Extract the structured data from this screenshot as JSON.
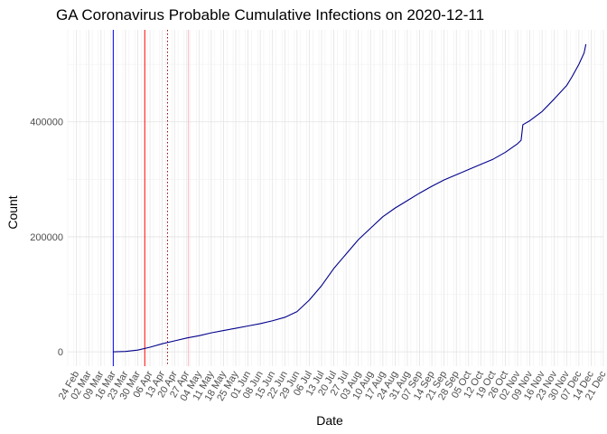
{
  "chart_data": {
    "type": "line",
    "title": "GA Coronavirus Probable Cumulative Infections on 2020-12-11",
    "xlabel": "Date",
    "ylabel": "Count",
    "x_type": "date",
    "xlim": [
      "2020-02-19",
      "2020-12-21"
    ],
    "ylim": [
      -25000,
      560000
    ],
    "grid": true,
    "legend": "none",
    "x_ticks": [
      {
        "date": "2020-02-24",
        "label": "24 Feb"
      },
      {
        "date": "2020-03-02",
        "label": "02 Mar"
      },
      {
        "date": "2020-03-09",
        "label": "09 Mar"
      },
      {
        "date": "2020-03-16",
        "label": "16 Mar"
      },
      {
        "date": "2020-03-23",
        "label": "23 Mar"
      },
      {
        "date": "2020-03-30",
        "label": "30 Mar"
      },
      {
        "date": "2020-04-06",
        "label": "06 Apr"
      },
      {
        "date": "2020-04-13",
        "label": "13 Apr"
      },
      {
        "date": "2020-04-20",
        "label": "20 Apr"
      },
      {
        "date": "2020-04-27",
        "label": "27 Apr"
      },
      {
        "date": "2020-05-04",
        "label": "04 May"
      },
      {
        "date": "2020-05-11",
        "label": "11 May"
      },
      {
        "date": "2020-05-18",
        "label": "18 May"
      },
      {
        "date": "2020-05-25",
        "label": "25 May"
      },
      {
        "date": "2020-06-01",
        "label": "01 Jun"
      },
      {
        "date": "2020-06-08",
        "label": "08 Jun"
      },
      {
        "date": "2020-06-15",
        "label": "15 Jun"
      },
      {
        "date": "2020-06-22",
        "label": "22 Jun"
      },
      {
        "date": "2020-06-29",
        "label": "29 Jun"
      },
      {
        "date": "2020-07-06",
        "label": "06 Jul"
      },
      {
        "date": "2020-07-13",
        "label": "13 Jul"
      },
      {
        "date": "2020-07-20",
        "label": "20 Jul"
      },
      {
        "date": "2020-07-27",
        "label": "27 Jul"
      },
      {
        "date": "2020-08-03",
        "label": "03 Aug"
      },
      {
        "date": "2020-08-10",
        "label": "10 Aug"
      },
      {
        "date": "2020-08-17",
        "label": "17 Aug"
      },
      {
        "date": "2020-08-24",
        "label": "24 Aug"
      },
      {
        "date": "2020-08-31",
        "label": "31 Aug"
      },
      {
        "date": "2020-09-07",
        "label": "07 Sep"
      },
      {
        "date": "2020-09-14",
        "label": "14 Sep"
      },
      {
        "date": "2020-09-21",
        "label": "21 Sep"
      },
      {
        "date": "2020-09-28",
        "label": "28 Sep"
      },
      {
        "date": "2020-10-05",
        "label": "05 Oct"
      },
      {
        "date": "2020-10-12",
        "label": "12 Oct"
      },
      {
        "date": "2020-10-19",
        "label": "19 Oct"
      },
      {
        "date": "2020-10-26",
        "label": "26 Oct"
      },
      {
        "date": "2020-11-02",
        "label": "02 Nov"
      },
      {
        "date": "2020-11-09",
        "label": "09 Nov"
      },
      {
        "date": "2020-11-16",
        "label": "16 Nov"
      },
      {
        "date": "2020-11-23",
        "label": "23 Nov"
      },
      {
        "date": "2020-11-30",
        "label": "30 Nov"
      },
      {
        "date": "2020-12-07",
        "label": "07 Dec"
      },
      {
        "date": "2020-12-14",
        "label": "14 Dec"
      },
      {
        "date": "2020-12-21",
        "label": "21 Dec"
      }
    ],
    "y_ticks": [
      {
        "value": 0,
        "label": "0"
      },
      {
        "value": 200000,
        "label": "200000"
      },
      {
        "value": 400000,
        "label": "400000"
      }
    ],
    "vlines": [
      {
        "date": "2020-03-16",
        "color": "#0000ff",
        "style": "solid"
      },
      {
        "date": "2020-04-03",
        "color": "#ff0000",
        "style": "solid"
      },
      {
        "date": "2020-04-16",
        "color": "#8b0000",
        "style": "dotted"
      },
      {
        "date": "2020-04-28",
        "color": "#ffb6c1",
        "style": "solid"
      }
    ],
    "series": [
      {
        "color": "#00008b",
        "points": [
          [
            "2020-03-16",
            0
          ],
          [
            "2020-03-23",
            600
          ],
          [
            "2020-03-30",
            3000
          ],
          [
            "2020-04-06",
            8000
          ],
          [
            "2020-04-13",
            14000
          ],
          [
            "2020-04-20",
            19000
          ],
          [
            "2020-04-27",
            24000
          ],
          [
            "2020-05-04",
            28000
          ],
          [
            "2020-05-11",
            33000
          ],
          [
            "2020-05-18",
            37000
          ],
          [
            "2020-05-25",
            41000
          ],
          [
            "2020-06-01",
            45000
          ],
          [
            "2020-06-08",
            49000
          ],
          [
            "2020-06-15",
            54000
          ],
          [
            "2020-06-22",
            60000
          ],
          [
            "2020-06-29",
            70000
          ],
          [
            "2020-07-06",
            90000
          ],
          [
            "2020-07-13",
            115000
          ],
          [
            "2020-07-20",
            145000
          ],
          [
            "2020-07-27",
            170000
          ],
          [
            "2020-08-03",
            195000
          ],
          [
            "2020-08-10",
            215000
          ],
          [
            "2020-08-17",
            235000
          ],
          [
            "2020-08-24",
            250000
          ],
          [
            "2020-08-31",
            263000
          ],
          [
            "2020-09-07",
            276000
          ],
          [
            "2020-09-14",
            288000
          ],
          [
            "2020-09-21",
            299000
          ],
          [
            "2020-09-28",
            308000
          ],
          [
            "2020-10-05",
            317000
          ],
          [
            "2020-10-12",
            326000
          ],
          [
            "2020-10-19",
            335000
          ],
          [
            "2020-10-26",
            347000
          ],
          [
            "2020-11-02",
            362000
          ],
          [
            "2020-11-04",
            368000
          ],
          [
            "2020-11-05",
            395000
          ],
          [
            "2020-11-09",
            402000
          ],
          [
            "2020-11-16",
            418000
          ],
          [
            "2020-11-23",
            440000
          ],
          [
            "2020-11-30",
            463000
          ],
          [
            "2020-12-03",
            478000
          ],
          [
            "2020-12-07",
            500000
          ],
          [
            "2020-12-10",
            520000
          ],
          [
            "2020-12-11",
            535000
          ]
        ]
      }
    ]
  }
}
